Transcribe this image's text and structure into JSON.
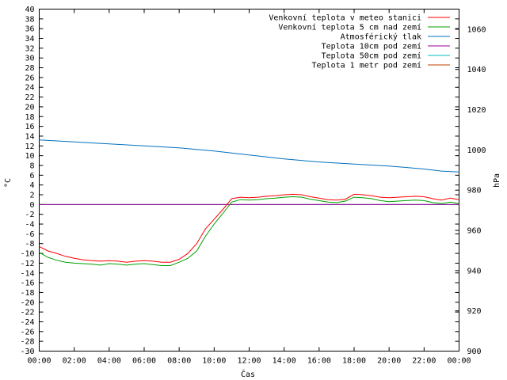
{
  "chart_data": {
    "type": "line",
    "xlabel": "Čas",
    "ylabel_left": "°C",
    "ylabel_right": "hPa",
    "x_ticks": [
      "00:00",
      "02:00",
      "04:00",
      "06:00",
      "08:00",
      "10:00",
      "12:00",
      "14:00",
      "16:00",
      "18:00",
      "20:00",
      "22:00",
      "00:00"
    ],
    "y_left_range": [
      -30,
      40
    ],
    "y_right_range": [
      900,
      1070
    ],
    "y_right_ticks": [
      900,
      920,
      940,
      960,
      980,
      1000,
      1020,
      1040,
      1060
    ],
    "x_range_hours": [
      0,
      24
    ],
    "series": [
      {
        "name": "Venkovní teplota v meteo stanici",
        "color": "#ff0000",
        "axis": "left",
        "x": [
          0,
          0.5,
          1,
          1.5,
          2,
          2.5,
          3,
          3.5,
          4,
          4.5,
          5,
          5.5,
          6,
          6.5,
          7,
          7.5,
          8,
          8.5,
          9,
          9.5,
          10,
          10.5,
          11,
          11.5,
          12,
          12.5,
          13,
          13.5,
          14,
          14.5,
          15,
          15.5,
          16,
          16.5,
          17,
          17.5,
          18,
          18.5,
          19,
          19.5,
          20,
          20.5,
          21,
          21.5,
          22,
          22.5,
          23,
          23.5,
          24
        ],
        "y": [
          -8.6,
          -9.5,
          -10,
          -10.6,
          -11,
          -11.3,
          -11.5,
          -11.6,
          -11.5,
          -11.6,
          -11.8,
          -11.6,
          -11.5,
          -11.6,
          -11.8,
          -11.8,
          -11.2,
          -10,
          -8,
          -5,
          -3,
          -1,
          1.2,
          1.5,
          1.4,
          1.5,
          1.7,
          1.8,
          2,
          2.1,
          2,
          1.6,
          1.3,
          1,
          0.9,
          1.1,
          2.1,
          2,
          1.8,
          1.5,
          1.4,
          1.5,
          1.6,
          1.7,
          1.6,
          1.2,
          0.9,
          1.3,
          1
        ]
      },
      {
        "name": "Venkovní teplota 5 cm nad zemí",
        "color": "#00a000",
        "axis": "left",
        "x": [
          0,
          0.5,
          1,
          1.5,
          2,
          2.5,
          3,
          3.5,
          4,
          4.5,
          5,
          5.5,
          6,
          6.5,
          7,
          7.5,
          8,
          8.5,
          9,
          9.5,
          10,
          10.5,
          11,
          11.5,
          12,
          12.5,
          13,
          13.5,
          14,
          14.5,
          15,
          15.5,
          16,
          16.5,
          17,
          17.5,
          18,
          18.5,
          19,
          19.5,
          20,
          20.5,
          21,
          21.5,
          22,
          22.5,
          23,
          23.5,
          24
        ],
        "y": [
          -9.8,
          -10.8,
          -11.4,
          -11.8,
          -12,
          -12.1,
          -12.2,
          -12.4,
          -12.1,
          -12.2,
          -12.4,
          -12.2,
          -12.1,
          -12.3,
          -12.5,
          -12.5,
          -11.8,
          -11,
          -9.5,
          -6.5,
          -4,
          -1.8,
          0.5,
          1,
          0.9,
          1,
          1.2,
          1.3,
          1.5,
          1.6,
          1.5,
          1.1,
          0.8,
          0.5,
          0.4,
          0.7,
          1.5,
          1.4,
          1.2,
          0.8,
          0.6,
          0.7,
          0.8,
          0.9,
          0.8,
          0.4,
          0.2,
          0.5,
          0.2
        ]
      },
      {
        "name": "Atmosférický tlak",
        "color": "#0070c0",
        "axis": "right",
        "x": [
          0,
          2,
          4,
          6,
          8,
          10,
          12,
          14,
          16,
          18,
          20,
          22,
          23,
          24
        ],
        "y": [
          1005,
          1004,
          1003,
          1002,
          1001,
          999.5,
          997.5,
          995.5,
          994,
          993,
          992,
          990.5,
          989.5,
          989
        ]
      },
      {
        "name": "Teplota 10cm pod zemí",
        "color": "#a000a0",
        "axis": "left",
        "x": [
          0,
          24
        ],
        "y": [
          0,
          0
        ]
      },
      {
        "name": "Teplota 50cm pod zemí",
        "color": "#00c0c0",
        "axis": "left",
        "x": [
          0,
          24
        ],
        "y": [
          0,
          0
        ]
      },
      {
        "name": "Teplota 1 metr pod zemí",
        "color": "#c04000",
        "axis": "left",
        "x": [
          0,
          24
        ],
        "y": [
          0,
          0
        ]
      }
    ],
    "legend_position": "top-right",
    "grid": false
  }
}
